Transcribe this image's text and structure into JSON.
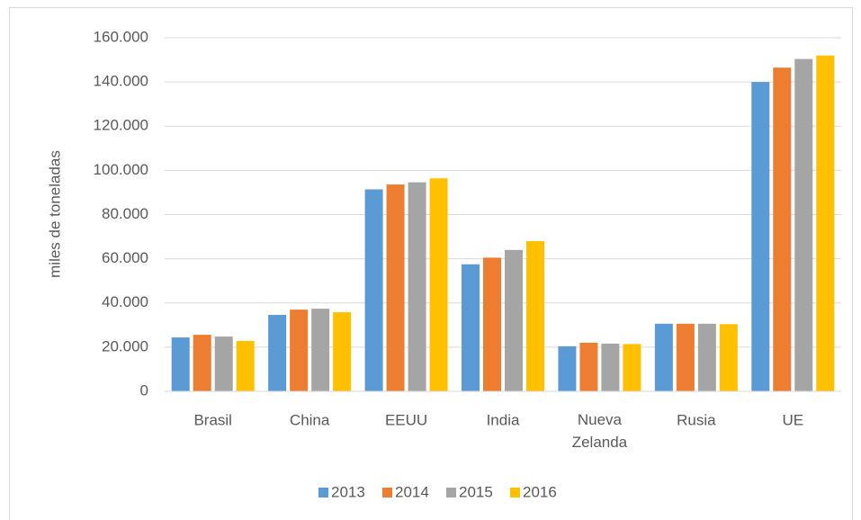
{
  "chart_data": {
    "type": "bar",
    "y_label": "miles de toneladas",
    "categories": [
      "Brasil",
      "China",
      "EEUU",
      "India",
      "Nueva Zelanda",
      "Rusia",
      "UE"
    ],
    "series": [
      {
        "name": "2013",
        "color": "#5b9bd5",
        "values": [
          24400,
          34600,
          91400,
          57500,
          20400,
          30600,
          140000
        ]
      },
      {
        "name": "2014",
        "color": "#ed7d31",
        "values": [
          25600,
          37000,
          93600,
          60500,
          22000,
          30600,
          146500
        ]
      },
      {
        "name": "2015",
        "color": "#a5a5a5",
        "values": [
          24800,
          37400,
          94600,
          64000,
          21600,
          30600,
          150400
        ]
      },
      {
        "name": "2016",
        "color": "#ffc000",
        "values": [
          22800,
          35800,
          96400,
          68000,
          21400,
          30400,
          152000
        ]
      }
    ],
    "ylim": [
      0,
      160000
    ],
    "yticks": [
      0,
      {
        "value": 20000,
        "label": "20.000"
      },
      {
        "value": 40000,
        "label": "40.000"
      },
      {
        "value": 60000,
        "label": "60.000"
      },
      {
        "value": 80000,
        "label": "80.000"
      },
      {
        "value": 100000,
        "label": "100.000"
      },
      {
        "value": 120000,
        "label": "120.000"
      },
      {
        "value": 140000,
        "label": "140.000"
      },
      {
        "value": 160000,
        "label": "160.000"
      }
    ],
    "grid": true,
    "legend": "bottom"
  }
}
